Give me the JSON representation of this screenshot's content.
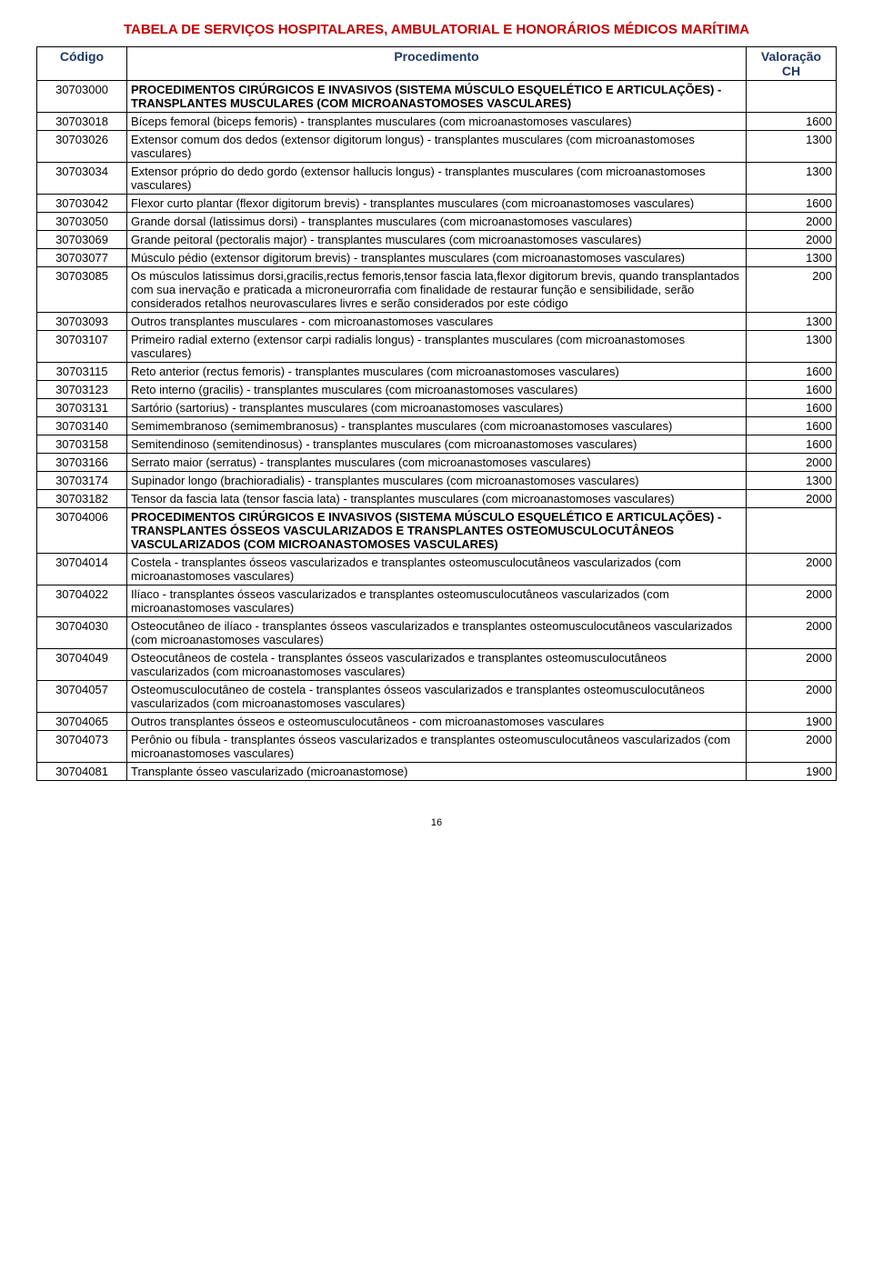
{
  "title": "TABELA DE SERVIÇOS HOSPITALARES, AMBULATORIAL E HONORÁRIOS MÉDICOS MARÍTIMA",
  "headers": {
    "code": "Código",
    "proc": "Procedimento",
    "val": "Valoração CH"
  },
  "footer": "16",
  "rows": [
    {
      "code": "30703000",
      "proc": "PROCEDIMENTOS CIRÚRGICOS E INVASIVOS (SISTEMA MÚSCULO ESQUELÉTICO E ARTICULAÇÕES) - TRANSPLANTES MUSCULARES (COM MICROANASTOMOSES VASCULARES)",
      "val": "",
      "section": true
    },
    {
      "code": "30703018",
      "proc": "Bíceps femoral (biceps femoris) - transplantes musculares (com microanastomoses vasculares)",
      "val": "1600"
    },
    {
      "code": "30703026",
      "proc": "Extensor comum dos dedos (extensor digitorum longus) - transplantes musculares (com microanastomoses vasculares)",
      "val": "1300"
    },
    {
      "code": "30703034",
      "proc": "Extensor próprio do dedo gordo (extensor hallucis longus) - transplantes musculares (com microanastomoses vasculares)",
      "val": "1300"
    },
    {
      "code": "30703042",
      "proc": "Flexor curto plantar (flexor digitorum brevis) - transplantes musculares (com microanastomoses vasculares)",
      "val": "1600"
    },
    {
      "code": "30703050",
      "proc": "Grande dorsal (latissimus dorsi) - transplantes musculares (com microanastomoses vasculares)",
      "val": "2000"
    },
    {
      "code": "30703069",
      "proc": "Grande peitoral (pectoralis major) - transplantes musculares (com microanastomoses vasculares)",
      "val": "2000"
    },
    {
      "code": "30703077",
      "proc": "Músculo pédio (extensor digitorum brevis) - transplantes musculares (com microanastomoses vasculares)",
      "val": "1300"
    },
    {
      "code": "30703085",
      "proc": "Os músculos latissimus dorsi,gracilis,rectus femoris,tensor fascia lata,flexor digitorum brevis, quando transplantados com sua inervação e praticada a microneurorrafia com finalidade de restaurar função e sensibilidade, serão considerados retalhos neurovasculares livres e serão considerados por este código",
      "val": "200"
    },
    {
      "code": "30703093",
      "proc": "Outros transplantes musculares - com microanastomoses vasculares",
      "val": "1300"
    },
    {
      "code": "30703107",
      "proc": "Primeiro radial externo (extensor carpi radialis longus) - transplantes musculares (com microanastomoses vasculares)",
      "val": "1300"
    },
    {
      "code": "30703115",
      "proc": "Reto anterior (rectus femoris) - transplantes musculares (com microanastomoses vasculares)",
      "val": "1600"
    },
    {
      "code": "30703123",
      "proc": "Reto interno (gracilis) - transplantes musculares (com microanastomoses vasculares)",
      "val": "1600"
    },
    {
      "code": "30703131",
      "proc": "Sartório (sartorius) - transplantes musculares (com microanastomoses vasculares)",
      "val": "1600"
    },
    {
      "code": "30703140",
      "proc": "Semimembranoso (semimembranosus) - transplantes musculares (com microanastomoses vasculares)",
      "val": "1600"
    },
    {
      "code": "30703158",
      "proc": "Semitendinoso (semitendinosus) - transplantes musculares (com microanastomoses vasculares)",
      "val": "1600"
    },
    {
      "code": "30703166",
      "proc": "Serrato maior (serratus) - transplantes musculares (com microanastomoses vasculares)",
      "val": "2000"
    },
    {
      "code": "30703174",
      "proc": "Supinador longo (brachioradialis) - transplantes musculares (com microanastomoses vasculares)",
      "val": "1300"
    },
    {
      "code": "30703182",
      "proc": "Tensor da fascia lata (tensor fascia lata) - transplantes musculares (com microanastomoses vasculares)",
      "val": "2000"
    },
    {
      "code": "30704006",
      "proc": "PROCEDIMENTOS CIRÚRGICOS E INVASIVOS (SISTEMA MÚSCULO ESQUELÉTICO E ARTICULAÇÕES) - TRANSPLANTES ÓSSEOS VASCULARIZADOS E TRANSPLANTES OSTEOMUSCULOCUTÂNEOS VASCULARIZADOS (COM MICROANASTOMOSES VASCULARES)",
      "val": "",
      "section": true
    },
    {
      "code": "30704014",
      "proc": "Costela - transplantes ósseos vascularizados e transplantes osteomusculocutâneos vascularizados (com microanastomoses vasculares)",
      "val": "2000"
    },
    {
      "code": "30704022",
      "proc": "Ilíaco - transplantes ósseos vascularizados e transplantes osteomusculocutâneos vascularizados (com microanastomoses vasculares)",
      "val": "2000"
    },
    {
      "code": "30704030",
      "proc": "Osteocutâneo de ilíaco - transplantes ósseos vascularizados e transplantes osteomusculocutâneos vascularizados (com microanastomoses vasculares)",
      "val": "2000"
    },
    {
      "code": "30704049",
      "proc": "Osteocutâneos de costela - transplantes ósseos vascularizados e transplantes osteomusculocutâneos vascularizados (com microanastomoses vasculares)",
      "val": "2000"
    },
    {
      "code": "30704057",
      "proc": "Osteomusculocutâneo de costela - transplantes ósseos vascularizados e transplantes osteomusculocutâneos vascularizados (com microanastomoses vasculares)",
      "val": "2000"
    },
    {
      "code": "30704065",
      "proc": "Outros transplantes ósseos e osteomusculocutâneos - com microanastomoses vasculares",
      "val": "1900"
    },
    {
      "code": "30704073",
      "proc": "Perônio ou fíbula - transplantes ósseos vascularizados e transplantes osteomusculocutâneos vascularizados (com microanastomoses vasculares)",
      "val": "2000"
    },
    {
      "code": "30704081",
      "proc": "Transplante ósseo vascularizado (microanastomose)",
      "val": "1900"
    }
  ]
}
